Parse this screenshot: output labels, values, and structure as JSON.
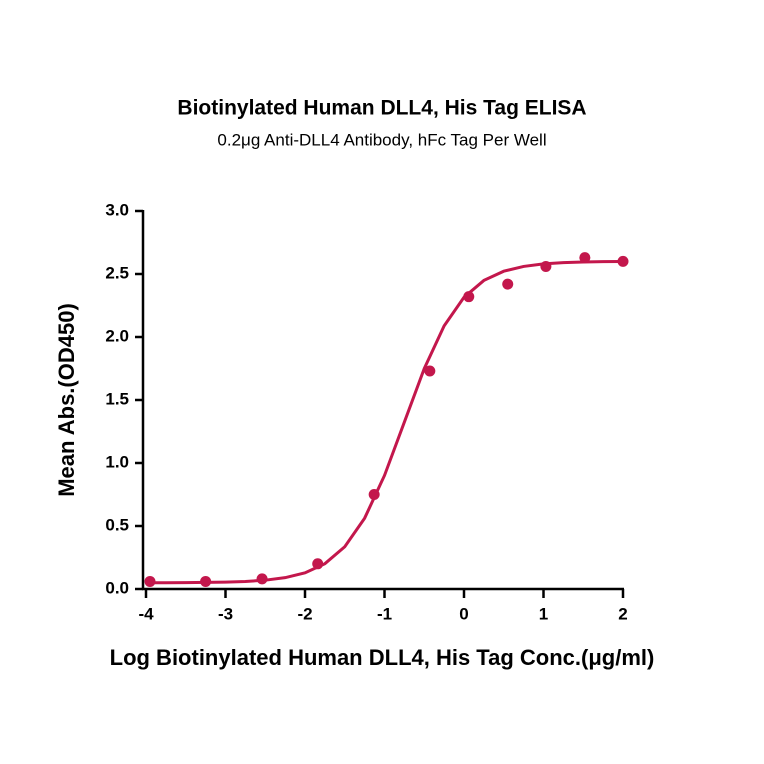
{
  "chart_data": {
    "type": "scatter",
    "title": "Biotinylated Human DLL4, His Tag ELISA",
    "subtitle": "0.2μg Anti-DLL4 Antibody, hFc Tag Per Well",
    "x_label": "Log Biotinylated Human DLL4, His Tag Conc.(μg/ml)",
    "y_label": "Mean Abs.(OD450)",
    "color": "#c3174c",
    "x": [
      -3.95,
      -3.25,
      -2.54,
      -1.84,
      -1.13,
      -0.43,
      0.06,
      0.55,
      1.03,
      1.52,
      2.0
    ],
    "values": [
      0.06,
      0.06,
      0.08,
      0.2,
      0.75,
      1.73,
      2.32,
      2.42,
      2.56,
      2.63,
      2.6
    ],
    "curve": {
      "x": [
        -4,
        -3.75,
        -3.5,
        -3.25,
        -3,
        -2.75,
        -2.5,
        -2.25,
        -2,
        -1.75,
        -1.5,
        -1.25,
        -1,
        -0.75,
        -0.5,
        -0.25,
        0,
        0.25,
        0.5,
        0.75,
        1,
        1.25,
        1.5,
        1.75,
        2
      ],
      "values": [
        0.05,
        0.05,
        0.051,
        0.053,
        0.055,
        0.06,
        0.07,
        0.09,
        0.128,
        0.201,
        0.335,
        0.562,
        0.901,
        1.325,
        1.749,
        2.088,
        2.315,
        2.449,
        2.522,
        2.56,
        2.58,
        2.59,
        2.595,
        2.598,
        2.599
      ]
    },
    "xlim": [
      -4,
      2
    ],
    "xticks": [
      -4,
      -3,
      -2,
      -1,
      0,
      1,
      2
    ],
    "ylim": [
      0,
      3
    ],
    "yticks": [
      {
        "value": 0,
        "label": "0.0"
      },
      0.5,
      {
        "value": 1,
        "label": "1.0"
      },
      1.5,
      {
        "value": 2,
        "label": "2.0"
      },
      2.5,
      {
        "value": 3,
        "label": "3.0"
      }
    ]
  }
}
